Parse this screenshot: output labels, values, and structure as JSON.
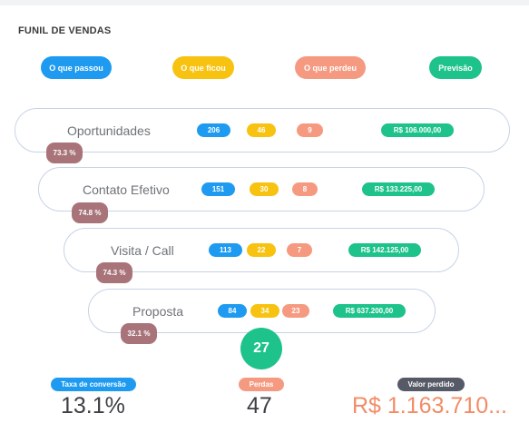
{
  "title": "FUNIL DE VENDAS",
  "legend": [
    {
      "label": "O que passou",
      "color": "#1e9bf0"
    },
    {
      "label": "O que ficou",
      "color": "#f7c210"
    },
    {
      "label": "O que perdeu",
      "color": "#f59a80"
    },
    {
      "label": "Previsão",
      "color": "#1ec28b"
    }
  ],
  "stages": [
    {
      "name": "Oportunidades",
      "passed": "206",
      "stayed": "46",
      "lost": "9",
      "forecast": "R$ 106.000,00",
      "rate": "73.3 %"
    },
    {
      "name": "Contato Efetivo",
      "passed": "151",
      "stayed": "30",
      "lost": "8",
      "forecast": "R$ 133.225,00",
      "rate": "74.8 %"
    },
    {
      "name": "Visita / Call",
      "passed": "113",
      "stayed": "22",
      "lost": "7",
      "forecast": "R$ 142.125,00",
      "rate": "74.3 %"
    },
    {
      "name": "Proposta",
      "passed": "84",
      "stayed": "34",
      "lost": "23",
      "forecast": "R$ 637.200,00",
      "rate": "32.1 %"
    }
  ],
  "final_count": "27",
  "summary": {
    "conversion": {
      "label": "Taxa de conversão",
      "value": "13.1%"
    },
    "losses": {
      "label": "Perdas",
      "value": "47"
    },
    "lost_value": {
      "label": "Valor perdido",
      "value": "R$ 1.163.710..."
    }
  },
  "colors": {
    "blue": "#1e9bf0",
    "yellow": "#f7c210",
    "salmon": "#f59a80",
    "green": "#1ec28b",
    "rate": "#a8747a",
    "dark": "#555a66"
  }
}
